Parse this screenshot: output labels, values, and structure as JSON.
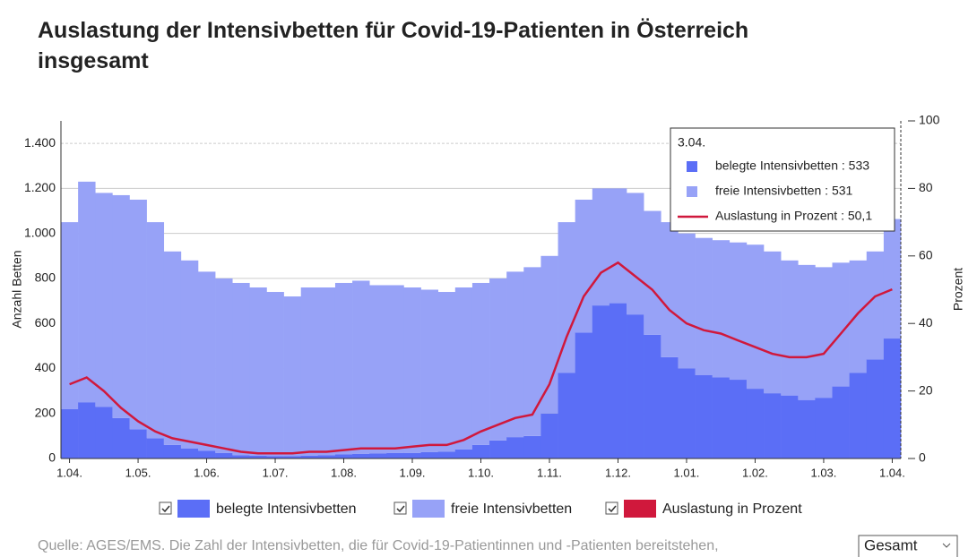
{
  "chart_data": {
    "type": "stacked-bar-line",
    "title": "Auslastung der Intensivbetten für Covid-19-Patienten in Österreich insgesamt",
    "y_label": "Anzahl Betten",
    "y2_label": "Prozent",
    "categories": [
      "1.04.",
      null,
      null,
      null,
      "1.05.",
      null,
      null,
      null,
      "1.06.",
      null,
      null,
      null,
      "1.07.",
      null,
      null,
      null,
      "1.08.",
      null,
      null,
      null,
      "1.09.",
      null,
      null,
      null,
      "1.10.",
      null,
      null,
      null,
      "1.11.",
      null,
      null,
      null,
      "1.12.",
      null,
      null,
      null,
      "1.01.",
      null,
      null,
      null,
      "1.02.",
      null,
      null,
      null,
      "1.03.",
      null,
      null,
      null,
      "1.04."
    ],
    "series": [
      {
        "name": "belegte Intensivbetten",
        "color": "#5b6ef6",
        "kind": "bar",
        "values": [
          220,
          250,
          230,
          180,
          130,
          90,
          60,
          45,
          35,
          25,
          15,
          12,
          10,
          10,
          12,
          15,
          18,
          20,
          22,
          25,
          25,
          28,
          30,
          40,
          60,
          80,
          95,
          100,
          200,
          380,
          560,
          680,
          690,
          640,
          550,
          450,
          400,
          370,
          360,
          350,
          310,
          290,
          280,
          260,
          270,
          320,
          380,
          440,
          533
        ]
      },
      {
        "name": "freie Intensivbetten",
        "color": "#97a2f7",
        "kind": "bar",
        "values": [
          830,
          980,
          950,
          990,
          1020,
          960,
          860,
          835,
          795,
          775,
          765,
          748,
          730,
          710,
          748,
          745,
          762,
          770,
          748,
          745,
          735,
          722,
          710,
          720,
          720,
          720,
          735,
          750,
          700,
          670,
          590,
          520,
          510,
          540,
          550,
          600,
          600,
          610,
          610,
          610,
          640,
          630,
          600,
          600,
          580,
          550,
          500,
          480,
          531
        ]
      },
      {
        "name": "Auslastung in Prozent",
        "color": "#d0183c",
        "kind": "line",
        "axis": "y2",
        "values": [
          22,
          24,
          20,
          15,
          11,
          8,
          6,
          5,
          4,
          3,
          2,
          1.5,
          1.5,
          1.5,
          2,
          2,
          2.5,
          3,
          3,
          3,
          3.5,
          4,
          4,
          5.5,
          8,
          10,
          12,
          13,
          22,
          36,
          48,
          55,
          58,
          54,
          50,
          44,
          40,
          38,
          37,
          35,
          33,
          31,
          30,
          30,
          31,
          37,
          43,
          48,
          50.1
        ]
      }
    ],
    "ylim": [
      0,
      1500
    ],
    "yticks": [
      0,
      200,
      400,
      600,
      800,
      {
        "value": 1000,
        "label": "1.000"
      },
      {
        "value": 1200,
        "label": "1.200"
      },
      {
        "value": 1400,
        "label": "1.400"
      }
    ],
    "y2lim": [
      0,
      100
    ],
    "y2ticks": [
      0,
      20,
      40,
      60,
      80,
      100
    ],
    "grid": true,
    "tooltip": {
      "title": "3.04.",
      "entries": [
        "belegte Intensivbetten : 533",
        "freie Intensivbetten : 531",
        "Auslastung in Prozent : 50,1"
      ]
    },
    "source": "Quelle: AGES/EMS. Die Zahl der Intensivbetten, die für Covid-19-Patientinnen und -Patienten bereitstehen,",
    "dropdown": "Gesamt"
  }
}
